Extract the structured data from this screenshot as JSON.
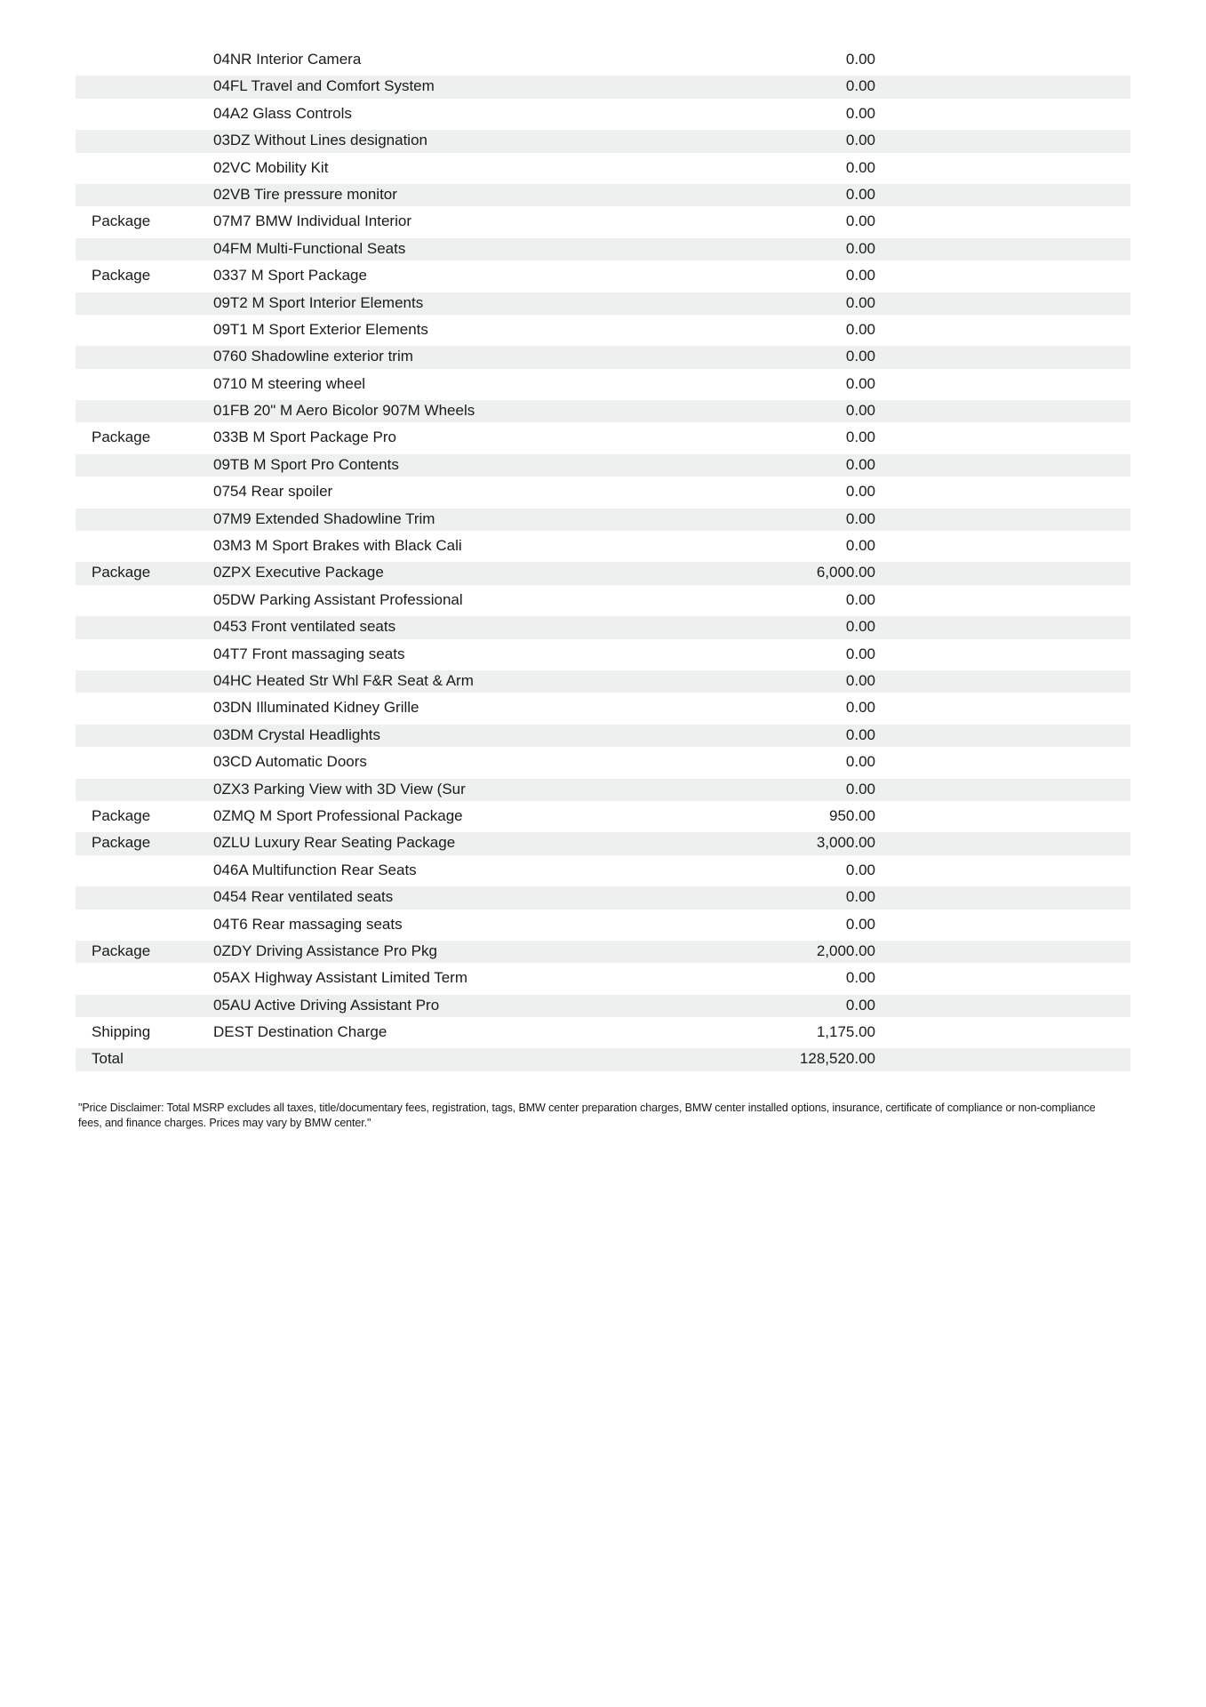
{
  "document": {
    "type": "vehicle-options-price-list"
  },
  "colors": {
    "stripe": "#edf0ef",
    "text": "#1a1a1a",
    "background": "#ffffff"
  },
  "table": {
    "columns": [
      "category",
      "description",
      "price"
    ],
    "rows": [
      {
        "category": "",
        "description": "04NR Interior Camera",
        "price": "0.00"
      },
      {
        "category": "",
        "description": "04FL Travel and Comfort System",
        "price": "0.00"
      },
      {
        "category": "",
        "description": "04A2 Glass Controls",
        "price": "0.00"
      },
      {
        "category": "",
        "description": "03DZ Without Lines designation",
        "price": "0.00"
      },
      {
        "category": "",
        "description": "02VC Mobility Kit",
        "price": "0.00"
      },
      {
        "category": "",
        "description": "02VB Tire pressure monitor",
        "price": "0.00"
      },
      {
        "category": "Package",
        "description": "07M7 BMW Individual Interior",
        "price": "0.00"
      },
      {
        "category": "",
        "description": "04FM Multi-Functional Seats",
        "price": "0.00"
      },
      {
        "category": "Package",
        "description": "0337 M Sport Package",
        "price": "0.00"
      },
      {
        "category": "",
        "description": "09T2 M Sport Interior Elements",
        "price": "0.00"
      },
      {
        "category": "",
        "description": "09T1 M Sport Exterior Elements",
        "price": "0.00"
      },
      {
        "category": "",
        "description": "0760 Shadowline exterior trim",
        "price": "0.00"
      },
      {
        "category": "",
        "description": "0710 M steering wheel",
        "price": "0.00"
      },
      {
        "category": "",
        "description": "01FB 20\" M Aero Bicolor 907M Wheels",
        "price": "0.00"
      },
      {
        "category": "Package",
        "description": "033B M Sport Package Pro",
        "price": "0.00"
      },
      {
        "category": "",
        "description": "09TB M Sport Pro Contents",
        "price": "0.00"
      },
      {
        "category": "",
        "description": "0754 Rear spoiler",
        "price": "0.00"
      },
      {
        "category": "",
        "description": "07M9 Extended Shadowline Trim",
        "price": "0.00"
      },
      {
        "category": "",
        "description": "03M3 M Sport Brakes with Black Cali",
        "price": "0.00"
      },
      {
        "category": "Package",
        "description": "0ZPX Executive Package",
        "price": "6,000.00"
      },
      {
        "category": "",
        "description": "05DW Parking Assistant Professional",
        "price": "0.00"
      },
      {
        "category": "",
        "description": "0453 Front ventilated seats",
        "price": "0.00"
      },
      {
        "category": "",
        "description": "04T7 Front massaging seats",
        "price": "0.00"
      },
      {
        "category": "",
        "description": "04HC Heated Str Whl F&R Seat & Arm",
        "price": "0.00"
      },
      {
        "category": "",
        "description": "03DN Illuminated Kidney Grille",
        "price": "0.00"
      },
      {
        "category": "",
        "description": "03DM Crystal Headlights",
        "price": "0.00"
      },
      {
        "category": "",
        "description": "03CD Automatic Doors",
        "price": "0.00"
      },
      {
        "category": "",
        "description": "0ZX3 Parking View with 3D View (Sur",
        "price": "0.00"
      },
      {
        "category": "Package",
        "description": "0ZMQ M Sport Professional Package",
        "price": "950.00"
      },
      {
        "category": "Package",
        "description": "0ZLU Luxury Rear Seating Package",
        "price": "3,000.00"
      },
      {
        "category": "",
        "description": "046A Multifunction Rear Seats",
        "price": "0.00"
      },
      {
        "category": "",
        "description": "0454 Rear ventilated seats",
        "price": "0.00"
      },
      {
        "category": "",
        "description": "04T6 Rear massaging seats",
        "price": "0.00"
      },
      {
        "category": "Package",
        "description": "0ZDY Driving Assistance Pro Pkg",
        "price": "2,000.00"
      },
      {
        "category": "",
        "description": "05AX Highway Assistant Limited Term",
        "price": "0.00"
      },
      {
        "category": "",
        "description": "05AU Active Driving Assistant Pro",
        "price": "0.00"
      },
      {
        "category": "Shipping",
        "description": "DEST Destination Charge",
        "price": "1,175.00"
      },
      {
        "category": "Total",
        "description": "",
        "price": "128,520.00"
      }
    ]
  },
  "disclaimer": "\"Price Disclaimer: Total MSRP excludes all taxes, title/documentary fees, registration, tags, BMW center preparation charges, BMW center installed options, insurance, certificate of compliance or non-compliance fees, and finance charges. Prices may vary by BMW center.\""
}
